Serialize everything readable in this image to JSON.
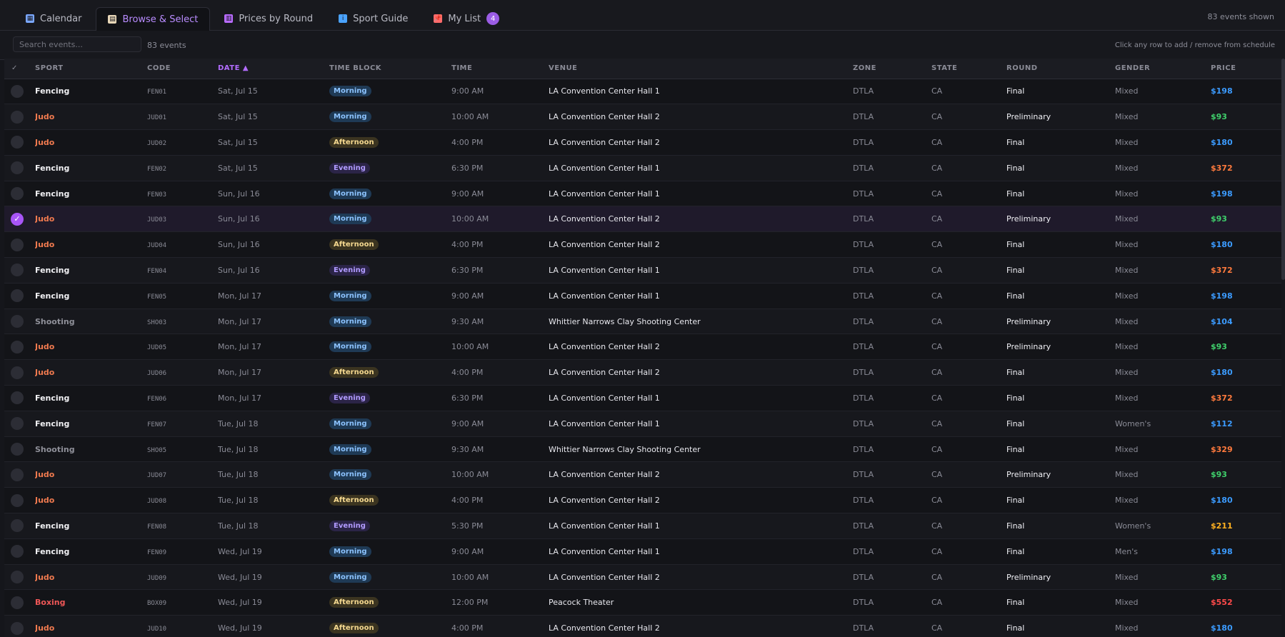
{
  "tabs": [
    {
      "label": "Calendar",
      "icon": "calendar-icon",
      "glyph": "▦",
      "icon_color": "#7aa7ff",
      "active": false
    },
    {
      "label": "Browse & Select",
      "icon": "clipboard-icon",
      "glyph": "▤",
      "icon_color": "#e8d7b8",
      "active": true
    },
    {
      "label": "Prices by Round",
      "icon": "bar-chart-icon",
      "glyph": "▥",
      "icon_color": "#b86bff",
      "active": false
    },
    {
      "label": "Sport Guide",
      "icon": "info-icon",
      "glyph": "i",
      "icon_color": "#4aa3ff",
      "active": false
    },
    {
      "label": "My List",
      "icon": "pin-icon",
      "glyph": "📌",
      "icon_color": "#ff6b6b",
      "active": false,
      "badge": "4"
    }
  ],
  "header": {
    "shown": "83 events shown"
  },
  "toolbar": {
    "search_placeholder": "Search events...",
    "count": "83 events",
    "hint": "Click any row to add / remove from schedule"
  },
  "columns": [
    "✓",
    "SPORT",
    "CODE",
    "DATE ▲",
    "TIME BLOCK",
    "TIME",
    "VENUE",
    "ZONE",
    "STATE",
    "ROUND",
    "GENDER",
    "PRICE"
  ],
  "colors": {
    "accent": "#a855f7",
    "sport": {
      "Fencing": "#f2f2f5",
      "Judo": "#f07a4f",
      "Shooting": "#8f9099",
      "Boxing": "#ef5757"
    },
    "block": {
      "Morning": {
        "bg": "#1f3a55",
        "fg": "#8cc3ff"
      },
      "Afternoon": {
        "bg": "#3b3420",
        "fg": "#f5d990"
      },
      "Evening": {
        "bg": "#2b2447",
        "fg": "#b19bff"
      }
    },
    "round": {
      "Final": "#f0f0f5",
      "Preliminary": "#f0f0f5"
    },
    "gender": {
      "Mixed": "#8a8b96",
      "Women's": "#8a8b96",
      "Men's": "#8a8b96"
    }
  },
  "rows": [
    {
      "selected": false,
      "sport": "Fencing",
      "code": "FEN01",
      "date": "Sat, Jul 15",
      "block": "Morning",
      "time": "9:00 AM",
      "venue": "LA Convention Center Hall 1",
      "zone": "DTLA",
      "state": "CA",
      "round": "Final",
      "gender": "Mixed",
      "price": "$198",
      "price_color": "#3b9bff"
    },
    {
      "selected": false,
      "sport": "Judo",
      "code": "JUD01",
      "date": "Sat, Jul 15",
      "block": "Morning",
      "time": "10:00 AM",
      "venue": "LA Convention Center Hall 2",
      "zone": "DTLA",
      "state": "CA",
      "round": "Preliminary",
      "gender": "Mixed",
      "price": "$93",
      "price_color": "#3fcf6b"
    },
    {
      "selected": false,
      "sport": "Judo",
      "code": "JUD02",
      "date": "Sat, Jul 15",
      "block": "Afternoon",
      "time": "4:00 PM",
      "venue": "LA Convention Center Hall 2",
      "zone": "DTLA",
      "state": "CA",
      "round": "Final",
      "gender": "Mixed",
      "price": "$180",
      "price_color": "#3b9bff"
    },
    {
      "selected": false,
      "sport": "Fencing",
      "code": "FEN02",
      "date": "Sat, Jul 15",
      "block": "Evening",
      "time": "6:30 PM",
      "venue": "LA Convention Center Hall 1",
      "zone": "DTLA",
      "state": "CA",
      "round": "Final",
      "gender": "Mixed",
      "price": "$372",
      "price_color": "#ff7a3d"
    },
    {
      "selected": false,
      "sport": "Fencing",
      "code": "FEN03",
      "date": "Sun, Jul 16",
      "block": "Morning",
      "time": "9:00 AM",
      "venue": "LA Convention Center Hall 1",
      "zone": "DTLA",
      "state": "CA",
      "round": "Final",
      "gender": "Mixed",
      "price": "$198",
      "price_color": "#3b9bff"
    },
    {
      "selected": true,
      "sport": "Judo",
      "code": "JUD03",
      "date": "Sun, Jul 16",
      "block": "Morning",
      "time": "10:00 AM",
      "venue": "LA Convention Center Hall 2",
      "zone": "DTLA",
      "state": "CA",
      "round": "Preliminary",
      "gender": "Mixed",
      "price": "$93",
      "price_color": "#3fcf6b"
    },
    {
      "selected": false,
      "sport": "Judo",
      "code": "JUD04",
      "date": "Sun, Jul 16",
      "block": "Afternoon",
      "time": "4:00 PM",
      "venue": "LA Convention Center Hall 2",
      "zone": "DTLA",
      "state": "CA",
      "round": "Final",
      "gender": "Mixed",
      "price": "$180",
      "price_color": "#3b9bff"
    },
    {
      "selected": false,
      "sport": "Fencing",
      "code": "FEN04",
      "date": "Sun, Jul 16",
      "block": "Evening",
      "time": "6:30 PM",
      "venue": "LA Convention Center Hall 1",
      "zone": "DTLA",
      "state": "CA",
      "round": "Final",
      "gender": "Mixed",
      "price": "$372",
      "price_color": "#ff7a3d"
    },
    {
      "selected": false,
      "sport": "Fencing",
      "code": "FEN05",
      "date": "Mon, Jul 17",
      "block": "Morning",
      "time": "9:00 AM",
      "venue": "LA Convention Center Hall 1",
      "zone": "DTLA",
      "state": "CA",
      "round": "Final",
      "gender": "Mixed",
      "price": "$198",
      "price_color": "#3b9bff"
    },
    {
      "selected": false,
      "sport": "Shooting",
      "code": "SHO03",
      "date": "Mon, Jul 17",
      "block": "Morning",
      "time": "9:30 AM",
      "venue": "Whittier Narrows Clay Shooting Center",
      "zone": "DTLA",
      "state": "CA",
      "round": "Preliminary",
      "gender": "Mixed",
      "price": "$104",
      "price_color": "#3b9bff"
    },
    {
      "selected": false,
      "sport": "Judo",
      "code": "JUD05",
      "date": "Mon, Jul 17",
      "block": "Morning",
      "time": "10:00 AM",
      "venue": "LA Convention Center Hall 2",
      "zone": "DTLA",
      "state": "CA",
      "round": "Preliminary",
      "gender": "Mixed",
      "price": "$93",
      "price_color": "#3fcf6b"
    },
    {
      "selected": false,
      "sport": "Judo",
      "code": "JUD06",
      "date": "Mon, Jul 17",
      "block": "Afternoon",
      "time": "4:00 PM",
      "venue": "LA Convention Center Hall 2",
      "zone": "DTLA",
      "state": "CA",
      "round": "Final",
      "gender": "Mixed",
      "price": "$180",
      "price_color": "#3b9bff"
    },
    {
      "selected": false,
      "sport": "Fencing",
      "code": "FEN06",
      "date": "Mon, Jul 17",
      "block": "Evening",
      "time": "6:30 PM",
      "venue": "LA Convention Center Hall 1",
      "zone": "DTLA",
      "state": "CA",
      "round": "Final",
      "gender": "Mixed",
      "price": "$372",
      "price_color": "#ff7a3d"
    },
    {
      "selected": false,
      "sport": "Fencing",
      "code": "FEN07",
      "date": "Tue, Jul 18",
      "block": "Morning",
      "time": "9:00 AM",
      "venue": "LA Convention Center Hall 1",
      "zone": "DTLA",
      "state": "CA",
      "round": "Final",
      "gender": "Women's",
      "price": "$112",
      "price_color": "#3b9bff"
    },
    {
      "selected": false,
      "sport": "Shooting",
      "code": "SHO05",
      "date": "Tue, Jul 18",
      "block": "Morning",
      "time": "9:30 AM",
      "venue": "Whittier Narrows Clay Shooting Center",
      "zone": "DTLA",
      "state": "CA",
      "round": "Final",
      "gender": "Mixed",
      "price": "$329",
      "price_color": "#ff7a3d"
    },
    {
      "selected": false,
      "sport": "Judo",
      "code": "JUD07",
      "date": "Tue, Jul 18",
      "block": "Morning",
      "time": "10:00 AM",
      "venue": "LA Convention Center Hall 2",
      "zone": "DTLA",
      "state": "CA",
      "round": "Preliminary",
      "gender": "Mixed",
      "price": "$93",
      "price_color": "#3fcf6b"
    },
    {
      "selected": false,
      "sport": "Judo",
      "code": "JUD08",
      "date": "Tue, Jul 18",
      "block": "Afternoon",
      "time": "4:00 PM",
      "venue": "LA Convention Center Hall 2",
      "zone": "DTLA",
      "state": "CA",
      "round": "Final",
      "gender": "Mixed",
      "price": "$180",
      "price_color": "#3b9bff"
    },
    {
      "selected": false,
      "sport": "Fencing",
      "code": "FEN08",
      "date": "Tue, Jul 18",
      "block": "Evening",
      "time": "5:30 PM",
      "venue": "LA Convention Center Hall 1",
      "zone": "DTLA",
      "state": "CA",
      "round": "Final",
      "gender": "Women's",
      "price": "$211",
      "price_color": "#ffb020"
    },
    {
      "selected": false,
      "sport": "Fencing",
      "code": "FEN09",
      "date": "Wed, Jul 19",
      "block": "Morning",
      "time": "9:00 AM",
      "venue": "LA Convention Center Hall 1",
      "zone": "DTLA",
      "state": "CA",
      "round": "Final",
      "gender": "Men's",
      "price": "$198",
      "price_color": "#3b9bff"
    },
    {
      "selected": false,
      "sport": "Judo",
      "code": "JUD09",
      "date": "Wed, Jul 19",
      "block": "Morning",
      "time": "10:00 AM",
      "venue": "LA Convention Center Hall 2",
      "zone": "DTLA",
      "state": "CA",
      "round": "Preliminary",
      "gender": "Mixed",
      "price": "$93",
      "price_color": "#3fcf6b"
    },
    {
      "selected": false,
      "sport": "Boxing",
      "code": "BOX09",
      "date": "Wed, Jul 19",
      "block": "Afternoon",
      "time": "12:00 PM",
      "venue": "Peacock Theater",
      "zone": "DTLA",
      "state": "CA",
      "round": "Final",
      "gender": "Mixed",
      "price": "$552",
      "price_color": "#ff4a4a"
    },
    {
      "selected": false,
      "sport": "Judo",
      "code": "JUD10",
      "date": "Wed, Jul 19",
      "block": "Afternoon",
      "time": "4:00 PM",
      "venue": "LA Convention Center Hall 2",
      "zone": "DTLA",
      "state": "CA",
      "round": "Final",
      "gender": "Mixed",
      "price": "$180",
      "price_color": "#3b9bff"
    }
  ]
}
